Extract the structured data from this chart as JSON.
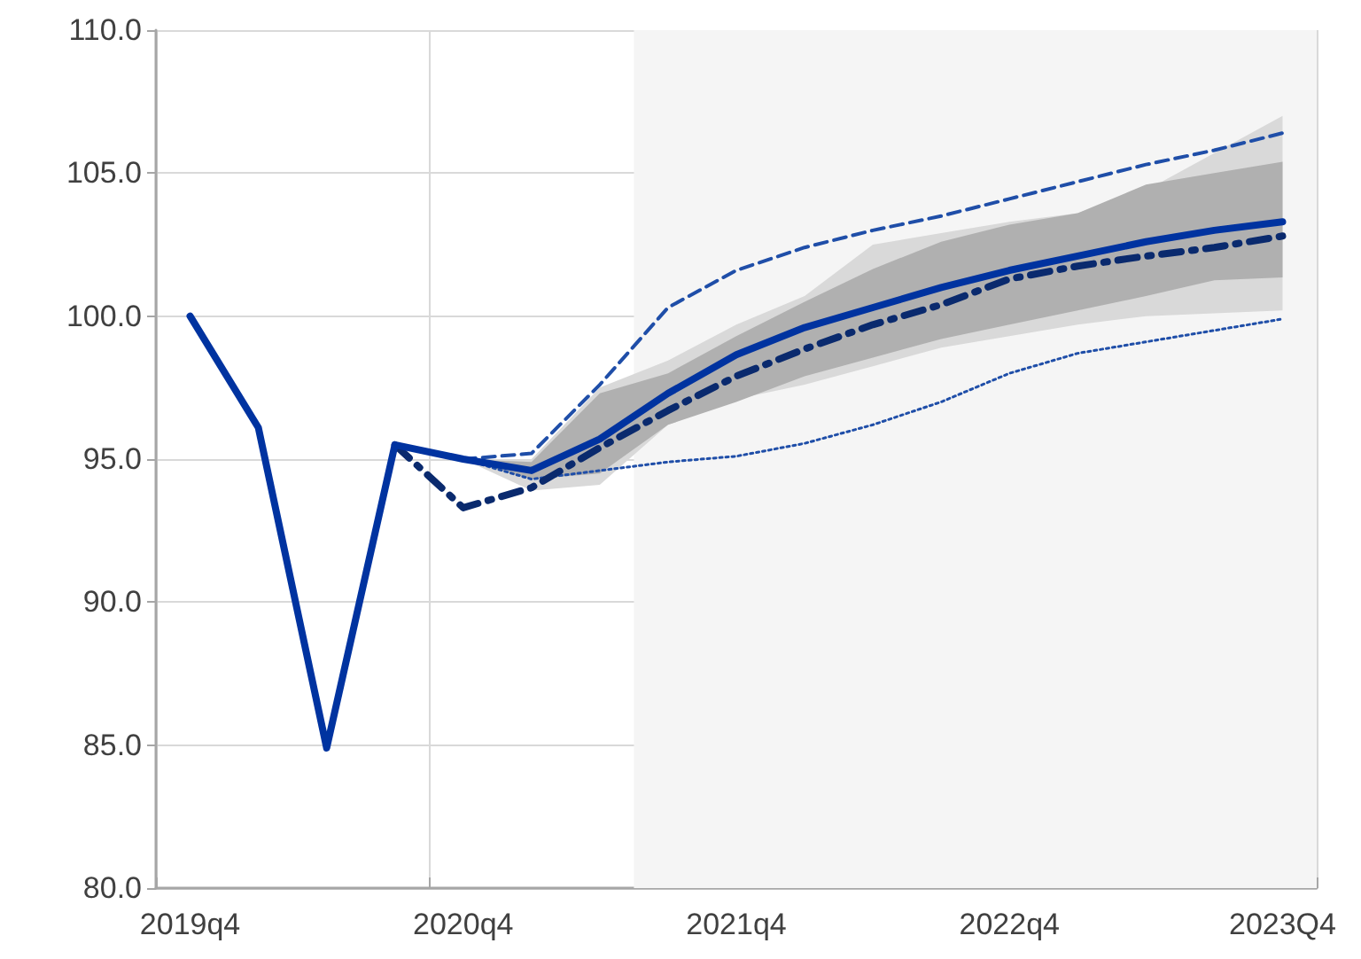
{
  "chart_data": {
    "type": "line",
    "categories": [
      "2019q4",
      null,
      null,
      null,
      "2020q4",
      null,
      null,
      null,
      "2021q4",
      null,
      null,
      null,
      "2022q4",
      null,
      null,
      null,
      "2023Q4"
    ],
    "series": [
      {
        "color": "#1f4ea8",
        "line_style": "dashed",
        "values": [
          null,
          null,
          null,
          null,
          95.0,
          95.2,
          97.6,
          100.3,
          101.6,
          102.4,
          103.0,
          103.5,
          104.1,
          104.7,
          105.3,
          105.8,
          106.4
        ]
      },
      {
        "color": "#1f4ea8",
        "line_style": "dotted",
        "values": [
          null,
          null,
          null,
          null,
          95.0,
          94.3,
          94.6,
          94.9,
          95.1,
          95.55,
          96.2,
          97.0,
          98.0,
          98.7,
          99.1,
          99.5,
          99.9
        ]
      },
      {
        "color": "#0a2a6e",
        "line_style": "dashdot",
        "values": [
          null,
          null,
          null,
          95.5,
          93.3,
          94.0,
          95.4,
          96.7,
          97.9,
          98.85,
          99.7,
          100.4,
          101.3,
          101.75,
          102.1,
          102.4,
          102.8
        ],
        "lower": [
          null,
          null,
          null,
          null,
          95.0,
          93.9,
          94.1,
          96.2,
          97.1,
          97.6,
          98.25,
          98.9,
          99.3,
          99.7,
          100.0,
          100.1,
          100.2
        ],
        "upper": [
          null,
          null,
          null,
          null,
          95.0,
          95.0,
          97.5,
          98.45,
          99.7,
          100.7,
          102.5,
          102.9,
          103.3,
          103.6,
          104.4,
          105.7,
          107.0
        ]
      },
      {
        "color": "#0033a0",
        "line_style": "solid",
        "values": [
          100.0,
          96.1,
          84.9,
          95.5,
          95.0,
          94.6,
          95.7,
          97.3,
          98.65,
          99.6,
          100.3,
          101.0,
          101.6,
          102.1,
          102.6,
          103.0,
          103.3
        ],
        "lower": [
          null,
          null,
          null,
          null,
          95.0,
          94.3,
          94.5,
          96.2,
          97.0,
          97.9,
          98.55,
          99.2,
          99.7,
          100.2,
          100.7,
          101.25,
          101.35
        ],
        "upper": [
          null,
          null,
          null,
          null,
          95.0,
          94.9,
          97.3,
          98.0,
          99.3,
          100.5,
          101.65,
          102.6,
          103.2,
          103.6,
          104.6,
          105.0,
          105.4
        ]
      }
    ],
    "ylim": [
      80,
      110
    ],
    "yticks": [
      {
        "value": 80,
        "label": "80.0"
      },
      {
        "value": 85,
        "label": "85.0"
      },
      {
        "value": 90,
        "label": "90.0"
      },
      {
        "value": 95,
        "label": "95.0"
      },
      {
        "value": 100,
        "label": "100.0"
      },
      {
        "value": 105,
        "label": "105.0"
      },
      {
        "value": 110,
        "label": "110.0"
      }
    ],
    "grid": true,
    "marker": "none"
  }
}
